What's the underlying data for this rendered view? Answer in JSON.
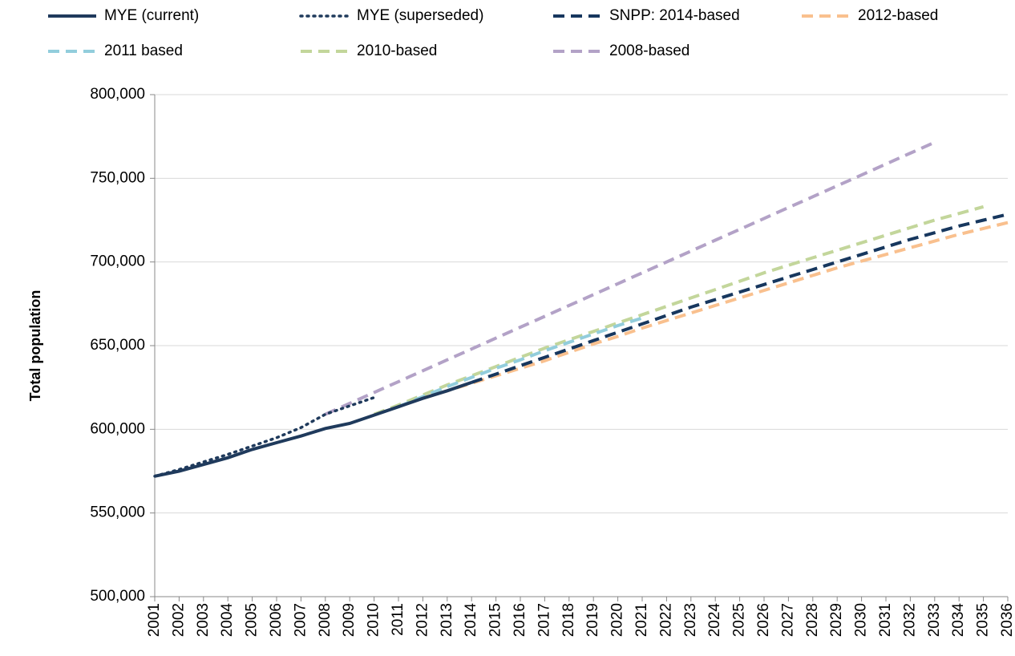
{
  "chart_data": {
    "type": "line",
    "y_label": "Total population",
    "categories": [
      "2001",
      "2002",
      "2003",
      "2004",
      "2005",
      "2006",
      "2007",
      "2008",
      "2009",
      "2010",
      "2011",
      "2012",
      "2013",
      "2014",
      "2015",
      "2016",
      "2017",
      "2018",
      "2019",
      "2020",
      "2021",
      "2022",
      "2023",
      "2024",
      "2025",
      "2026",
      "2027",
      "2028",
      "2029",
      "2030",
      "2031",
      "2032",
      "2033",
      "2034",
      "2035",
      "2036"
    ],
    "ylim": [
      500000,
      800000
    ],
    "yticks": [
      {
        "value": 500000,
        "label": "500,000"
      },
      {
        "value": 550000,
        "label": "550,000"
      },
      {
        "value": 600000,
        "label": "600,000"
      },
      {
        "value": 650000,
        "label": "650,000"
      },
      {
        "value": 700000,
        "label": "700,000"
      },
      {
        "value": 750000,
        "label": "750,000"
      },
      {
        "value": 800000,
        "label": "800,000"
      }
    ],
    "grid": true,
    "series": [
      {
        "name": "MYE (current)",
        "color": "#1f3a5c",
        "dash": "solid",
        "values": [
          572000,
          575000,
          579000,
          583000,
          588000,
          592000,
          596000,
          600500,
          603500,
          608500,
          613500,
          618500,
          623000,
          628000,
          null,
          null,
          null,
          null,
          null,
          null,
          null,
          null,
          null,
          null,
          null,
          null,
          null,
          null,
          null,
          null,
          null,
          null,
          null,
          null,
          null,
          null
        ]
      },
      {
        "name": "MYE (superseded)",
        "color": "#1f3a5c",
        "dash": "dotted",
        "values": [
          572000,
          576000,
          580500,
          585000,
          590000,
          595000,
          601000,
          609000,
          614000,
          619000,
          null,
          null,
          null,
          null,
          null,
          null,
          null,
          null,
          null,
          null,
          null,
          null,
          null,
          null,
          null,
          null,
          null,
          null,
          null,
          null,
          null,
          null,
          null,
          null,
          null,
          null
        ]
      },
      {
        "name": "SNPP: 2014-based",
        "color": "#17375e",
        "dash": "dashed",
        "values": [
          null,
          null,
          null,
          null,
          null,
          null,
          null,
          null,
          null,
          null,
          null,
          null,
          null,
          628000,
          633000,
          638000,
          643000,
          648000,
          653000,
          658000,
          663000,
          668000,
          673000,
          677500,
          682000,
          686500,
          691000,
          695500,
          700000,
          704500,
          709000,
          713500,
          717500,
          721500,
          725000,
          728500
        ]
      },
      {
        "name": "2012-based",
        "color": "#f9c08e",
        "dash": "dashed",
        "values": [
          null,
          null,
          null,
          null,
          null,
          null,
          null,
          null,
          null,
          null,
          null,
          618500,
          623000,
          627500,
          632000,
          636500,
          641000,
          646000,
          651000,
          655500,
          660500,
          665000,
          669500,
          674000,
          678500,
          683000,
          687500,
          692000,
          696500,
          700500,
          704500,
          708500,
          712500,
          716500,
          720000,
          723500
        ]
      },
      {
        "name": "2011 based",
        "color": "#92cddc",
        "dash": "dashed",
        "values": [
          null,
          null,
          null,
          null,
          null,
          null,
          null,
          null,
          null,
          null,
          613500,
          619500,
          625500,
          631000,
          636500,
          641500,
          647000,
          652000,
          657000,
          662000,
          666500,
          null,
          null,
          null,
          null,
          null,
          null,
          null,
          null,
          null,
          null,
          null,
          null,
          null,
          null,
          null
        ]
      },
      {
        "name": "2010-based",
        "color": "#c3d69b",
        "dash": "dashed",
        "values": [
          null,
          null,
          null,
          null,
          null,
          null,
          null,
          null,
          null,
          609000,
          614500,
          620500,
          626500,
          632000,
          637500,
          643000,
          648500,
          653500,
          658500,
          663500,
          668500,
          673500,
          678500,
          683500,
          688500,
          693500,
          698000,
          702500,
          707000,
          711500,
          716000,
          720500,
          725000,
          729000,
          733000,
          null
        ]
      },
      {
        "name": "2008-based",
        "color": "#b3a2c7",
        "dash": "dashed",
        "values": [
          null,
          null,
          null,
          null,
          null,
          null,
          null,
          609000,
          615500,
          622000,
          628500,
          635000,
          641500,
          648000,
          654500,
          661000,
          667500,
          674000,
          680500,
          687000,
          693500,
          700000,
          706500,
          713000,
          719500,
          726000,
          732500,
          739000,
          745500,
          752000,
          758500,
          765000,
          771500,
          null,
          null,
          null
        ]
      }
    ]
  }
}
